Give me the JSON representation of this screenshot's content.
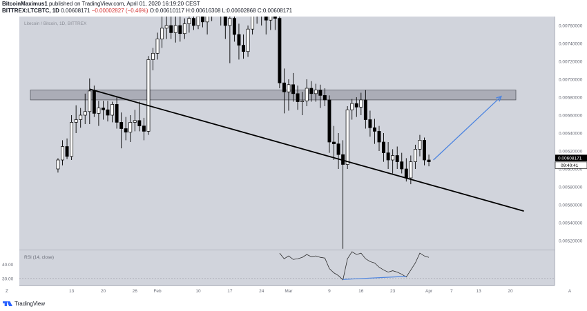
{
  "header": {
    "author": "BitcoinMaximus1",
    "published_text": "published on TradingView.com, April 01, 2020 16:19:20 CEST",
    "symbol": "BITTREX:LTCBTC, 1D",
    "last_price": "0.00608171",
    "change": "−0.00002827 (−0.46%)",
    "open": "O:0.00610117",
    "high": "H:0.00616308",
    "low": "L:0.00602868",
    "close": "C:0.00608171"
  },
  "chart_watermark": "Litecoin / Bitcoin, 1D, BITTREX",
  "rsi_label": "RSI (14, close)",
  "rsi_ticks": [
    "40.00",
    "30.00"
  ],
  "price_label": "0.00608171",
  "countdown_label": "09:40:41",
  "footer": {
    "brand": "TradingView",
    "left_corner": "Z",
    "right_corner": "A"
  },
  "colors": {
    "background": "#d1d4dc",
    "bull_body": "#ffffff",
    "bear_body": "#000000",
    "wick": "#000000",
    "zone": "#a6a9b2",
    "trendline": "#000000",
    "projection": "#4c84e0",
    "rsi_line": "#2b2b2b",
    "rsi_divergence": "#4c84e0"
  },
  "chart_data": {
    "type": "candlestick",
    "title": "Litecoin / Bitcoin, 1D, BITTREX",
    "ylabel": "LTC/BTC",
    "ylim": [
      0.0051,
      0.0077
    ],
    "y_ticks": [
      "0.00760000",
      "0.00740000",
      "0.00720000",
      "0.00700000",
      "0.00680000",
      "0.00660000",
      "0.00640000",
      "0.00620000",
      "0.00600000",
      "0.00580000",
      "0.00560000",
      "0.00540000",
      "0.00520000"
    ],
    "x_ticks": [
      {
        "day": 13,
        "label": "13"
      },
      {
        "day": 20,
        "label": "20"
      },
      {
        "day": 27,
        "label": "26"
      },
      {
        "day": 32,
        "label": "Feb"
      },
      {
        "day": 41,
        "label": "10"
      },
      {
        "day": 48,
        "label": "17"
      },
      {
        "day": 55,
        "label": "24"
      },
      {
        "day": 61,
        "label": "Mar"
      },
      {
        "day": 70,
        "label": "9"
      },
      {
        "day": 77,
        "label": "16"
      },
      {
        "day": 84,
        "label": "23"
      },
      {
        "day": 92,
        "label": "Apr"
      },
      {
        "day": 97,
        "label": "7"
      },
      {
        "day": 103,
        "label": "13"
      },
      {
        "day": 110,
        "label": "20"
      }
    ],
    "candles": [
      {
        "d": 10,
        "o": 0.006,
        "h": 0.00612,
        "l": 0.00596,
        "c": 0.0061
      },
      {
        "d": 11,
        "o": 0.0061,
        "h": 0.00632,
        "l": 0.00604,
        "c": 0.00625
      },
      {
        "d": 12,
        "o": 0.00625,
        "h": 0.00634,
        "l": 0.00611,
        "c": 0.00614
      },
      {
        "d": 13,
        "o": 0.00614,
        "h": 0.0066,
        "l": 0.0061,
        "c": 0.00652
      },
      {
        "d": 14,
        "o": 0.00652,
        "h": 0.00671,
        "l": 0.0064,
        "c": 0.00655
      },
      {
        "d": 15,
        "o": 0.00655,
        "h": 0.00668,
        "l": 0.00646,
        "c": 0.0066
      },
      {
        "d": 16,
        "o": 0.0066,
        "h": 0.00684,
        "l": 0.0065,
        "c": 0.00664
      },
      {
        "d": 17,
        "o": 0.00664,
        "h": 0.00701,
        "l": 0.0065,
        "c": 0.00687
      },
      {
        "d": 18,
        "o": 0.00687,
        "h": 0.00693,
        "l": 0.00658,
        "c": 0.00662
      },
      {
        "d": 19,
        "o": 0.00662,
        "h": 0.00676,
        "l": 0.00648,
        "c": 0.00668
      },
      {
        "d": 20,
        "o": 0.00668,
        "h": 0.00676,
        "l": 0.00655,
        "c": 0.00666
      },
      {
        "d": 21,
        "o": 0.00666,
        "h": 0.00676,
        "l": 0.00653,
        "c": 0.0066
      },
      {
        "d": 22,
        "o": 0.0066,
        "h": 0.00675,
        "l": 0.00652,
        "c": 0.00672
      },
      {
        "d": 23,
        "o": 0.00672,
        "h": 0.0068,
        "l": 0.00645,
        "c": 0.00652
      },
      {
        "d": 24,
        "o": 0.00652,
        "h": 0.00663,
        "l": 0.00623,
        "c": 0.00645
      },
      {
        "d": 25,
        "o": 0.00645,
        "h": 0.00658,
        "l": 0.00632,
        "c": 0.00641
      },
      {
        "d": 26,
        "o": 0.00641,
        "h": 0.0066,
        "l": 0.0063,
        "c": 0.00652
      },
      {
        "d": 27,
        "o": 0.00652,
        "h": 0.00666,
        "l": 0.00642,
        "c": 0.00654
      },
      {
        "d": 28,
        "o": 0.00654,
        "h": 0.00675,
        "l": 0.00642,
        "c": 0.00648
      },
      {
        "d": 29,
        "o": 0.00648,
        "h": 0.00657,
        "l": 0.00632,
        "c": 0.00642
      },
      {
        "d": 30,
        "o": 0.00642,
        "h": 0.00726,
        "l": 0.00638,
        "c": 0.00722
      },
      {
        "d": 31,
        "o": 0.00722,
        "h": 0.00735,
        "l": 0.0071,
        "c": 0.00729
      },
      {
        "d": 32,
        "o": 0.00729,
        "h": 0.00752,
        "l": 0.00722,
        "c": 0.00745
      },
      {
        "d": 33,
        "o": 0.00745,
        "h": 0.00775,
        "l": 0.00735,
        "c": 0.00757
      },
      {
        "d": 34,
        "o": 0.00757,
        "h": 0.0077,
        "l": 0.00745,
        "c": 0.0076
      },
      {
        "d": 35,
        "o": 0.0076,
        "h": 0.00772,
        "l": 0.00745,
        "c": 0.00752
      },
      {
        "d": 36,
        "o": 0.00752,
        "h": 0.0077,
        "l": 0.00741,
        "c": 0.0076
      },
      {
        "d": 37,
        "o": 0.0076,
        "h": 0.00772,
        "l": 0.00742,
        "c": 0.00751
      },
      {
        "d": 38,
        "o": 0.00751,
        "h": 0.00768,
        "l": 0.00745,
        "c": 0.00762
      },
      {
        "d": 39,
        "o": 0.00762,
        "h": 0.00775,
        "l": 0.00752,
        "c": 0.00768
      },
      {
        "d": 40,
        "o": 0.00768,
        "h": 0.00778,
        "l": 0.00755,
        "c": 0.0076
      },
      {
        "d": 41,
        "o": 0.0076,
        "h": 0.00778,
        "l": 0.00756,
        "c": 0.0077
      },
      {
        "d": 42,
        "o": 0.0077,
        "h": 0.0078,
        "l": 0.00758,
        "c": 0.00764
      },
      {
        "d": 43,
        "o": 0.00764,
        "h": 0.00778,
        "l": 0.0075,
        "c": 0.00774
      },
      {
        "d": 44,
        "o": 0.00774,
        "h": 0.0079,
        "l": 0.00765,
        "c": 0.00781
      },
      {
        "d": 45,
        "o": 0.00781,
        "h": 0.00795,
        "l": 0.0077,
        "c": 0.00788
      },
      {
        "d": 46,
        "o": 0.00788,
        "h": 0.008,
        "l": 0.0076,
        "c": 0.00779
      },
      {
        "d": 47,
        "o": 0.00779,
        "h": 0.0079,
        "l": 0.00745,
        "c": 0.0076
      },
      {
        "d": 48,
        "o": 0.0076,
        "h": 0.00781,
        "l": 0.00718,
        "c": 0.00768
      },
      {
        "d": 49,
        "o": 0.00768,
        "h": 0.00776,
        "l": 0.00742,
        "c": 0.0075
      },
      {
        "d": 50,
        "o": 0.0075,
        "h": 0.00762,
        "l": 0.00722,
        "c": 0.00738
      },
      {
        "d": 51,
        "o": 0.00738,
        "h": 0.0075,
        "l": 0.00723,
        "c": 0.00731
      },
      {
        "d": 52,
        "o": 0.00731,
        "h": 0.0076,
        "l": 0.00725,
        "c": 0.00756
      },
      {
        "d": 53,
        "o": 0.00756,
        "h": 0.00782,
        "l": 0.0075,
        "c": 0.00776
      },
      {
        "d": 54,
        "o": 0.00776,
        "h": 0.0079,
        "l": 0.00762,
        "c": 0.00772
      },
      {
        "d": 55,
        "o": 0.00772,
        "h": 0.008,
        "l": 0.0076,
        "c": 0.00783
      },
      {
        "d": 56,
        "o": 0.00783,
        "h": 0.00795,
        "l": 0.0075,
        "c": 0.00766
      },
      {
        "d": 57,
        "o": 0.00766,
        "h": 0.00785,
        "l": 0.00755,
        "c": 0.00777
      },
      {
        "d": 58,
        "o": 0.00777,
        "h": 0.0079,
        "l": 0.00755,
        "c": 0.00768
      },
      {
        "d": 59,
        "o": 0.00768,
        "h": 0.00778,
        "l": 0.0069,
        "c": 0.00696
      },
      {
        "d": 60,
        "o": 0.00696,
        "h": 0.00712,
        "l": 0.00662,
        "c": 0.00686
      },
      {
        "d": 61,
        "o": 0.00686,
        "h": 0.007,
        "l": 0.00665,
        "c": 0.00694
      },
      {
        "d": 62,
        "o": 0.00694,
        "h": 0.00707,
        "l": 0.00675,
        "c": 0.00684
      },
      {
        "d": 63,
        "o": 0.00684,
        "h": 0.00693,
        "l": 0.00666,
        "c": 0.00675
      },
      {
        "d": 64,
        "o": 0.00675,
        "h": 0.00686,
        "l": 0.0066,
        "c": 0.00676
      },
      {
        "d": 65,
        "o": 0.00676,
        "h": 0.007,
        "l": 0.0067,
        "c": 0.0069
      },
      {
        "d": 66,
        "o": 0.0069,
        "h": 0.00698,
        "l": 0.00675,
        "c": 0.00684
      },
      {
        "d": 67,
        "o": 0.00684,
        "h": 0.00695,
        "l": 0.00675,
        "c": 0.00688
      },
      {
        "d": 68,
        "o": 0.00688,
        "h": 0.00694,
        "l": 0.00668,
        "c": 0.00682
      },
      {
        "d": 69,
        "o": 0.00682,
        "h": 0.0069,
        "l": 0.0067,
        "c": 0.00677
      },
      {
        "d": 70,
        "o": 0.00677,
        "h": 0.00682,
        "l": 0.00618,
        "c": 0.0063
      },
      {
        "d": 71,
        "o": 0.0063,
        "h": 0.00648,
        "l": 0.0061,
        "c": 0.00628
      },
      {
        "d": 72,
        "o": 0.00628,
        "h": 0.0064,
        "l": 0.006,
        "c": 0.00616
      },
      {
        "d": 73,
        "o": 0.00616,
        "h": 0.00632,
        "l": 0.00511,
        "c": 0.00605
      },
      {
        "d": 74,
        "o": 0.00605,
        "h": 0.0067,
        "l": 0.006,
        "c": 0.00666
      },
      {
        "d": 75,
        "o": 0.00666,
        "h": 0.00678,
        "l": 0.00655,
        "c": 0.00673
      },
      {
        "d": 76,
        "o": 0.00673,
        "h": 0.0068,
        "l": 0.00658,
        "c": 0.00669
      },
      {
        "d": 77,
        "o": 0.00669,
        "h": 0.00685,
        "l": 0.0066,
        "c": 0.00677
      },
      {
        "d": 78,
        "o": 0.00677,
        "h": 0.00688,
        "l": 0.00645,
        "c": 0.00655
      },
      {
        "d": 79,
        "o": 0.00655,
        "h": 0.00665,
        "l": 0.00636,
        "c": 0.00646
      },
      {
        "d": 80,
        "o": 0.00646,
        "h": 0.00656,
        "l": 0.00628,
        "c": 0.00642
      },
      {
        "d": 81,
        "o": 0.00642,
        "h": 0.00648,
        "l": 0.0062,
        "c": 0.0063
      },
      {
        "d": 82,
        "o": 0.0063,
        "h": 0.0064,
        "l": 0.00608,
        "c": 0.00618
      },
      {
        "d": 83,
        "o": 0.00618,
        "h": 0.0063,
        "l": 0.006,
        "c": 0.0061
      },
      {
        "d": 84,
        "o": 0.0061,
        "h": 0.00622,
        "l": 0.00595,
        "c": 0.00615
      },
      {
        "d": 85,
        "o": 0.00615,
        "h": 0.00625,
        "l": 0.006,
        "c": 0.00608
      },
      {
        "d": 86,
        "o": 0.00608,
        "h": 0.00618,
        "l": 0.00595,
        "c": 0.006
      },
      {
        "d": 87,
        "o": 0.006,
        "h": 0.00612,
        "l": 0.00586,
        "c": 0.0059
      },
      {
        "d": 88,
        "o": 0.0059,
        "h": 0.00615,
        "l": 0.00583,
        "c": 0.00608
      },
      {
        "d": 89,
        "o": 0.00608,
        "h": 0.00627,
        "l": 0.006,
        "c": 0.00622
      },
      {
        "d": 90,
        "o": 0.00622,
        "h": 0.00638,
        "l": 0.00614,
        "c": 0.00632
      },
      {
        "d": 91,
        "o": 0.00632,
        "h": 0.00635,
        "l": 0.00604,
        "c": 0.0061
      },
      {
        "d": 92,
        "o": 0.0061,
        "h": 0.00616,
        "l": 0.00603,
        "c": 0.00608
      }
    ],
    "resistance_zone": {
      "low": 0.00677,
      "high": 0.00688
    },
    "trendline": {
      "start": {
        "day": 17,
        "price": 0.00689
      },
      "end": {
        "day": 113,
        "price": 0.00553
      }
    },
    "projection_arrow": {
      "start": {
        "day": 93,
        "price": 0.0061
      },
      "end": {
        "day": 108,
        "price": 0.00681
      }
    },
    "rsi": {
      "ylim": [
        25,
        50
      ],
      "values": [
        {
          "d": 59,
          "v": 48
        },
        {
          "d": 60,
          "v": 44
        },
        {
          "d": 61,
          "v": 46
        },
        {
          "d": 62,
          "v": 43.5
        },
        {
          "d": 63,
          "v": 44
        },
        {
          "d": 64,
          "v": 45
        },
        {
          "d": 65,
          "v": 47
        },
        {
          "d": 66,
          "v": 45.5
        },
        {
          "d": 67,
          "v": 46
        },
        {
          "d": 68,
          "v": 45
        },
        {
          "d": 69,
          "v": 44.5
        },
        {
          "d": 70,
          "v": 37
        },
        {
          "d": 71,
          "v": 34
        },
        {
          "d": 72,
          "v": 32
        },
        {
          "d": 73,
          "v": 29
        },
        {
          "d": 74,
          "v": 44
        },
        {
          "d": 75,
          "v": 49
        },
        {
          "d": 76,
          "v": 47
        },
        {
          "d": 77,
          "v": 48
        },
        {
          "d": 78,
          "v": 44
        },
        {
          "d": 79,
          "v": 42
        },
        {
          "d": 80,
          "v": 41
        },
        {
          "d": 81,
          "v": 38
        },
        {
          "d": 82,
          "v": 36
        },
        {
          "d": 83,
          "v": 34.5
        },
        {
          "d": 84,
          "v": 35.5
        },
        {
          "d": 85,
          "v": 34.5
        },
        {
          "d": 86,
          "v": 33
        },
        {
          "d": 87,
          "v": 31
        },
        {
          "d": 88,
          "v": 36
        },
        {
          "d": 89,
          "v": 41
        },
        {
          "d": 90,
          "v": 48
        },
        {
          "d": 91,
          "v": 46
        },
        {
          "d": 92,
          "v": 45
        }
      ],
      "divergence_line": {
        "start": {
          "day": 73,
          "value": 29.3
        },
        "end": {
          "day": 87,
          "value": 31.5
        }
      }
    }
  }
}
